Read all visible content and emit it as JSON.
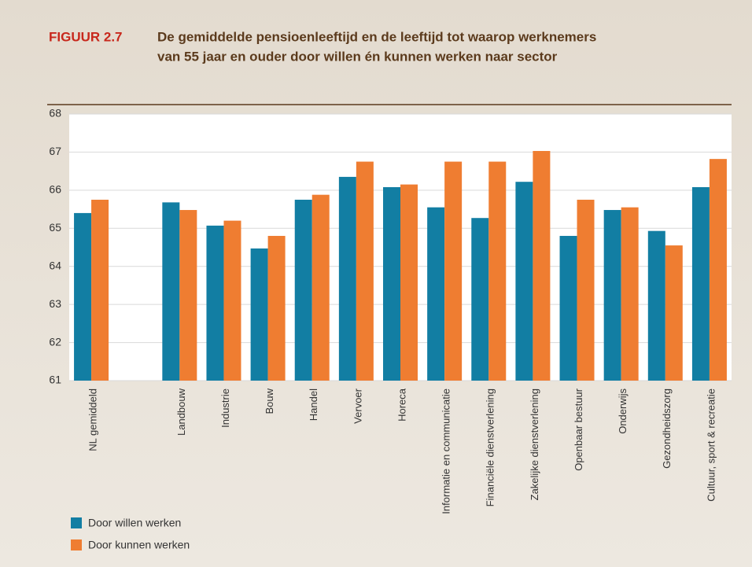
{
  "chart_data": {
    "type": "bar",
    "label": "FIGUUR 2.7",
    "title": [
      "De gemiddelde pensioenleeftijd en de leeftijd tot waarop werknemers",
      "van 55 jaar en ouder door willen én kunnen werken naar sector"
    ],
    "categories": [
      "NL gemiddeld",
      null,
      "Landbouw",
      "Industrie",
      "Bouw",
      "Handel",
      "Vervoer",
      "Horeca",
      "Informatie en communicatie",
      "Financiële dienstverlening",
      "Zakelijke dienstverlening",
      "Openbaar bestuur",
      "Onderwijs",
      "Gezondheidszorg",
      "Cultuur, sport & recreatie"
    ],
    "series": [
      {
        "name": "Door willen werken",
        "color": "#127ea3",
        "values": [
          65.4,
          null,
          65.68,
          65.07,
          64.47,
          65.75,
          66.35,
          66.08,
          65.55,
          65.27,
          66.22,
          64.8,
          65.48,
          64.93,
          66.08
        ]
      },
      {
        "name": "Door kunnen werken",
        "color": "#ef7d31",
        "values": [
          65.75,
          null,
          65.48,
          65.2,
          64.8,
          65.88,
          66.75,
          66.15,
          66.75,
          66.75,
          67.03,
          65.75,
          65.55,
          64.55,
          66.82
        ]
      }
    ],
    "ylim": [
      61,
      68
    ],
    "yticks": [
      61,
      62,
      63,
      64,
      65,
      66,
      67,
      68
    ],
    "grid": true,
    "legend": "bottom-left"
  }
}
